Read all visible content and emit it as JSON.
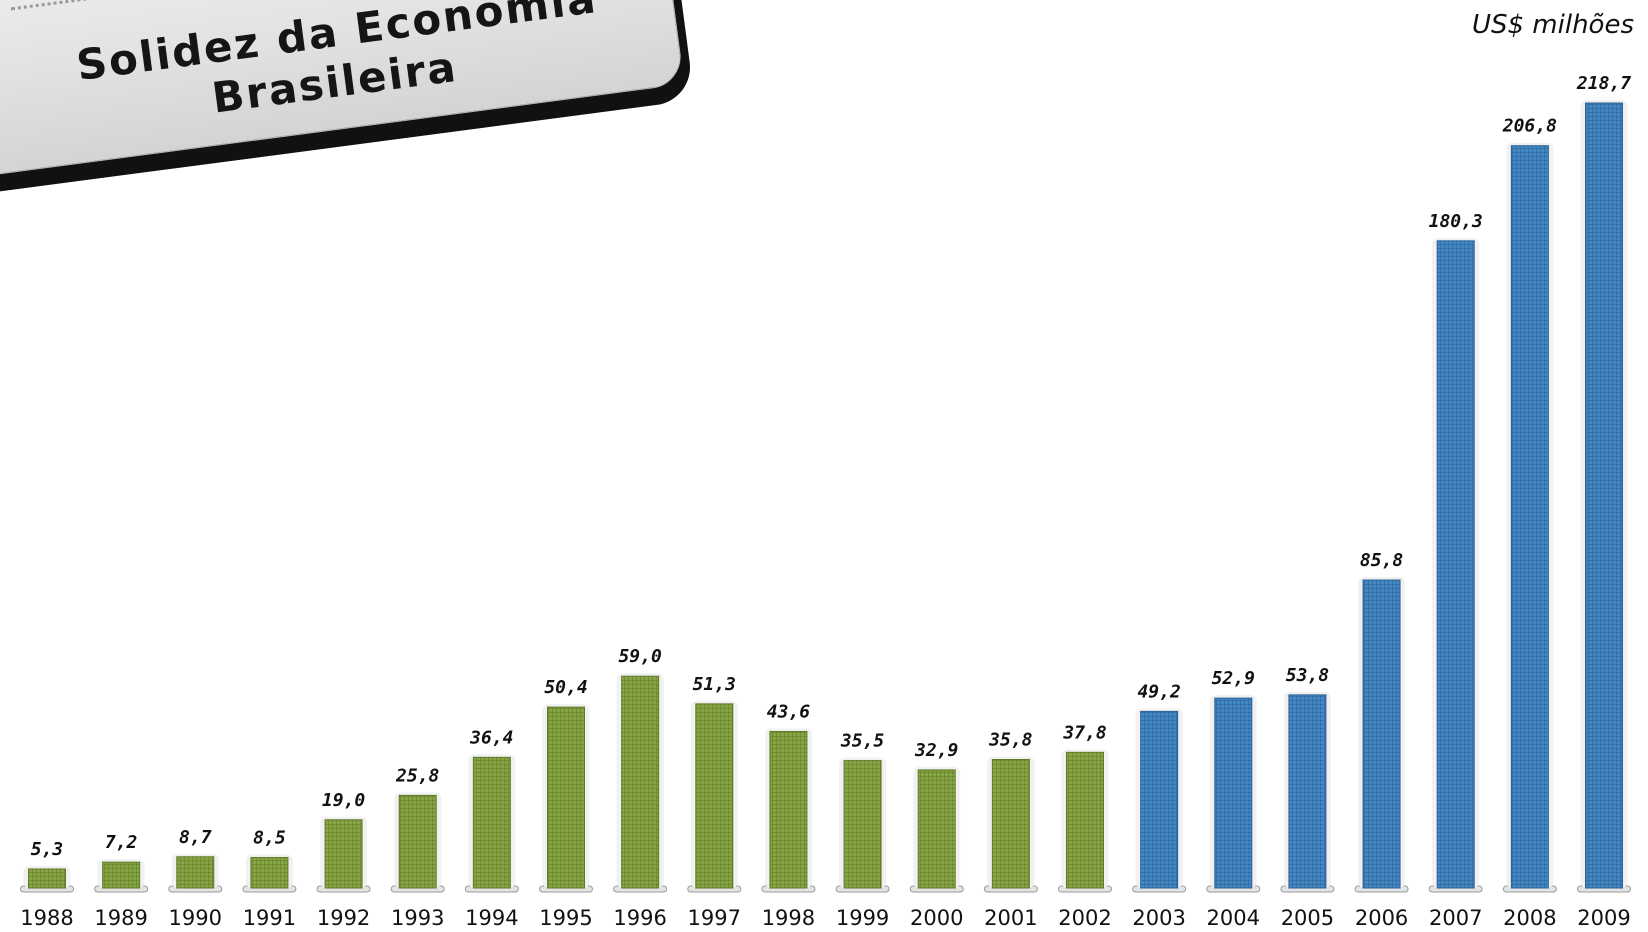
{
  "title": {
    "line1": "Solidez da Economia",
    "line2": "Brasileira"
  },
  "unit_label": "US$ milhões",
  "colors": {
    "green": "#7c9a3d",
    "green_grid": "#5f7a28",
    "blue": "#3a7db8",
    "blue_grid": "#2a5f94"
  },
  "chart_data": {
    "type": "bar",
    "title": "Solidez da Economia Brasileira",
    "ylabel": "US$ milhões",
    "xlabel": "",
    "ylim": [
      0,
      218.7
    ],
    "grid": false,
    "categories": [
      "1988",
      "1989",
      "1990",
      "1991",
      "1992",
      "1993",
      "1994",
      "1995",
      "1996",
      "1997",
      "1998",
      "1999",
      "2000",
      "2001",
      "2002",
      "2003",
      "2004",
      "2005",
      "2006",
      "2007",
      "2008",
      "2009"
    ],
    "values": [
      5.3,
      7.2,
      8.7,
      8.5,
      19.0,
      25.8,
      36.4,
      50.4,
      59.0,
      51.3,
      43.6,
      35.5,
      32.9,
      35.8,
      37.8,
      49.2,
      52.9,
      53.8,
      85.8,
      180.3,
      206.8,
      218.7
    ],
    "value_labels": [
      "5,3",
      "7,2",
      "8,7",
      "8,5",
      "19,0",
      "25,8",
      "36,4",
      "50,4",
      "59,0",
      "51,3",
      "43,6",
      "35,5",
      "32,9",
      "35,8",
      "37,8",
      "49,2",
      "52,9",
      "53,8",
      "85,8",
      "180,3",
      "206,8",
      "218,7"
    ],
    "bar_colors": [
      "green",
      "green",
      "green",
      "green",
      "green",
      "green",
      "green",
      "green",
      "green",
      "green",
      "green",
      "green",
      "green",
      "green",
      "green",
      "blue",
      "blue",
      "blue",
      "blue",
      "blue",
      "blue",
      "blue"
    ]
  }
}
